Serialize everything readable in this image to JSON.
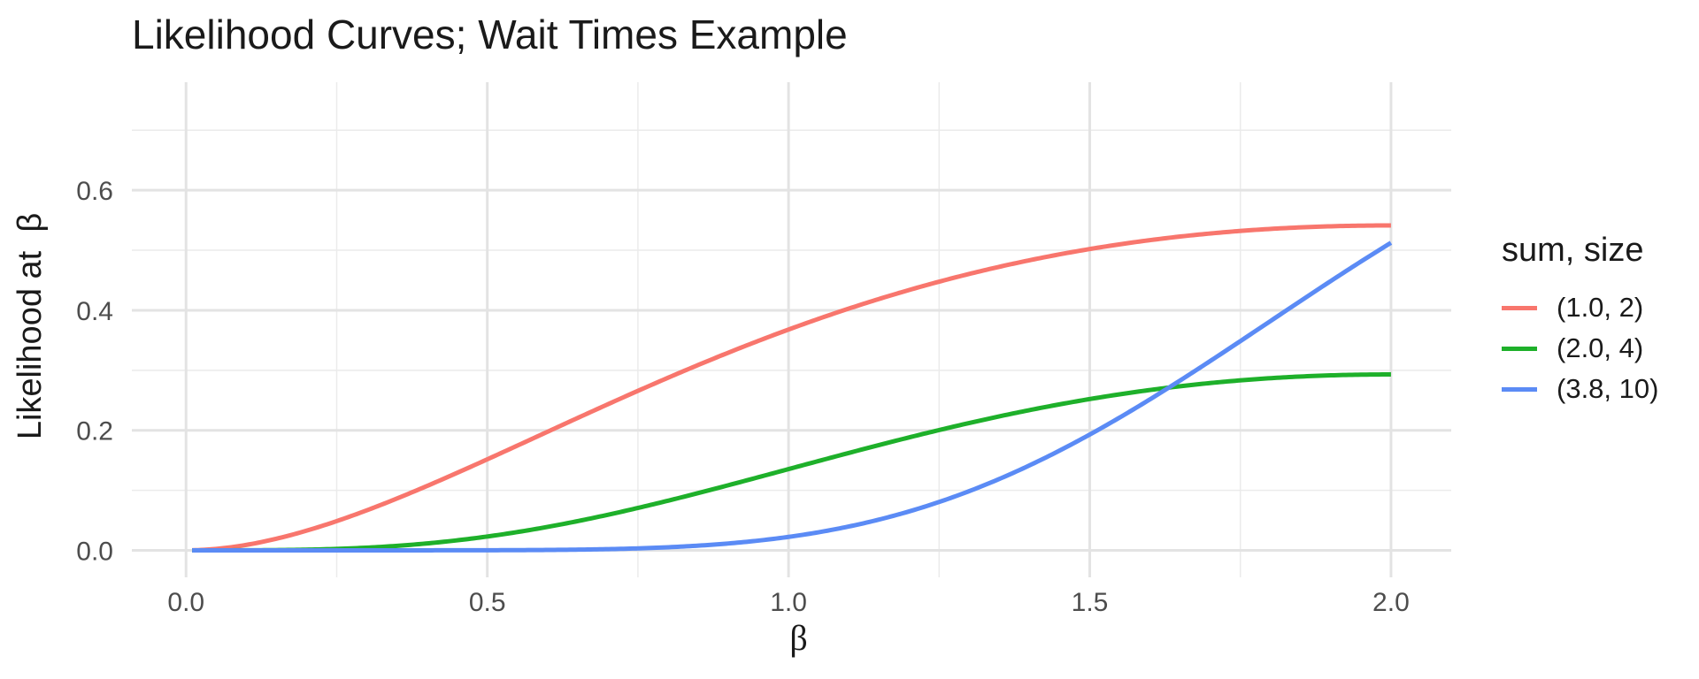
{
  "chart_data": {
    "type": "line",
    "title": "Likelihood Curves; Wait Times Example",
    "xlabel": "β",
    "ylabel": "Likelihood at  β",
    "xlim": [
      -0.09,
      2.1
    ],
    "ylim": [
      -0.045,
      0.78
    ],
    "x_ticks": [
      "0.0",
      "0.5",
      "1.0",
      "1.5",
      "2.0"
    ],
    "y_ticks": [
      "0.0",
      "0.2",
      "0.4",
      "0.6"
    ],
    "grid": true,
    "legend_title": "sum, size",
    "legend_position": "right",
    "series": [
      {
        "name": "(1.0, 2)",
        "sum": 1.0,
        "size": 2,
        "color": "#F8766D"
      },
      {
        "name": "(2.0, 4)",
        "sum": 2.0,
        "size": 4,
        "color": "#1EB02A"
      },
      {
        "name": "(3.8, 10)",
        "sum": 3.8,
        "size": 10,
        "color": "#5B8BF5"
      }
    ]
  }
}
